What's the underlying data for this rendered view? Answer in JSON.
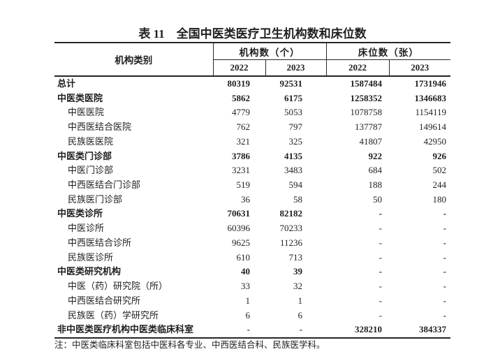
{
  "title": "表 11　全国中医类医疗卫生机构数和床位数",
  "table": {
    "header": {
      "category": "机构类别",
      "institutions_group": "机构数（个）",
      "beds_group": "床位数（张）",
      "years": [
        "2022",
        "2023",
        "2022",
        "2023"
      ]
    },
    "rows": [
      {
        "label": "总计",
        "bold": true,
        "indent": false,
        "values": [
          "80319",
          "92531",
          "1587484",
          "1731946"
        ]
      },
      {
        "label": "中医类医院",
        "bold": true,
        "indent": false,
        "values": [
          "5862",
          "6175",
          "1258352",
          "1346683"
        ]
      },
      {
        "label": "中医医院",
        "bold": false,
        "indent": true,
        "values": [
          "4779",
          "5053",
          "1078758",
          "1154119"
        ]
      },
      {
        "label": "中西医结合医院",
        "bold": false,
        "indent": true,
        "values": [
          "762",
          "797",
          "137787",
          "149614"
        ]
      },
      {
        "label": "民族医医院",
        "bold": false,
        "indent": true,
        "values": [
          "321",
          "325",
          "41807",
          "42950"
        ]
      },
      {
        "label": "中医类门诊部",
        "bold": true,
        "indent": false,
        "values": [
          "3786",
          "4135",
          "922",
          "926"
        ]
      },
      {
        "label": "中医门诊部",
        "bold": false,
        "indent": true,
        "values": [
          "3231",
          "3483",
          "684",
          "502"
        ]
      },
      {
        "label": "中西医结合门诊部",
        "bold": false,
        "indent": true,
        "values": [
          "519",
          "594",
          "188",
          "244"
        ]
      },
      {
        "label": "民族医门诊部",
        "bold": false,
        "indent": true,
        "values": [
          "36",
          "58",
          "50",
          "180"
        ]
      },
      {
        "label": "中医类诊所",
        "bold": true,
        "indent": false,
        "values": [
          "70631",
          "82182",
          "-",
          "-"
        ]
      },
      {
        "label": "中医诊所",
        "bold": false,
        "indent": true,
        "values": [
          "60396",
          "70233",
          "-",
          "-"
        ]
      },
      {
        "label": "中西医结合诊所",
        "bold": false,
        "indent": true,
        "values": [
          "9625",
          "11236",
          "-",
          "-"
        ]
      },
      {
        "label": "民族医诊所",
        "bold": false,
        "indent": true,
        "values": [
          "610",
          "713",
          "-",
          "-"
        ]
      },
      {
        "label": "中医类研究机构",
        "bold": true,
        "indent": false,
        "values": [
          "40",
          "39",
          "-",
          "-"
        ]
      },
      {
        "label": "中医（药）研究院（所）",
        "bold": false,
        "indent": true,
        "values": [
          "33",
          "32",
          "-",
          "-"
        ]
      },
      {
        "label": "中西医结合研究所",
        "bold": false,
        "indent": true,
        "values": [
          "1",
          "1",
          "-",
          "-"
        ]
      },
      {
        "label": "民族医（药）学研究所",
        "bold": false,
        "indent": true,
        "values": [
          "6",
          "6",
          "-",
          "-"
        ]
      },
      {
        "label": "非中医类医疗机构中医类临床科室",
        "bold": true,
        "indent": false,
        "values": [
          "-",
          "-",
          "328210",
          "384337"
        ]
      }
    ]
  },
  "note": "注：中医类临床科室包括中医科各专业、中西医结合科、民族医学科。"
}
